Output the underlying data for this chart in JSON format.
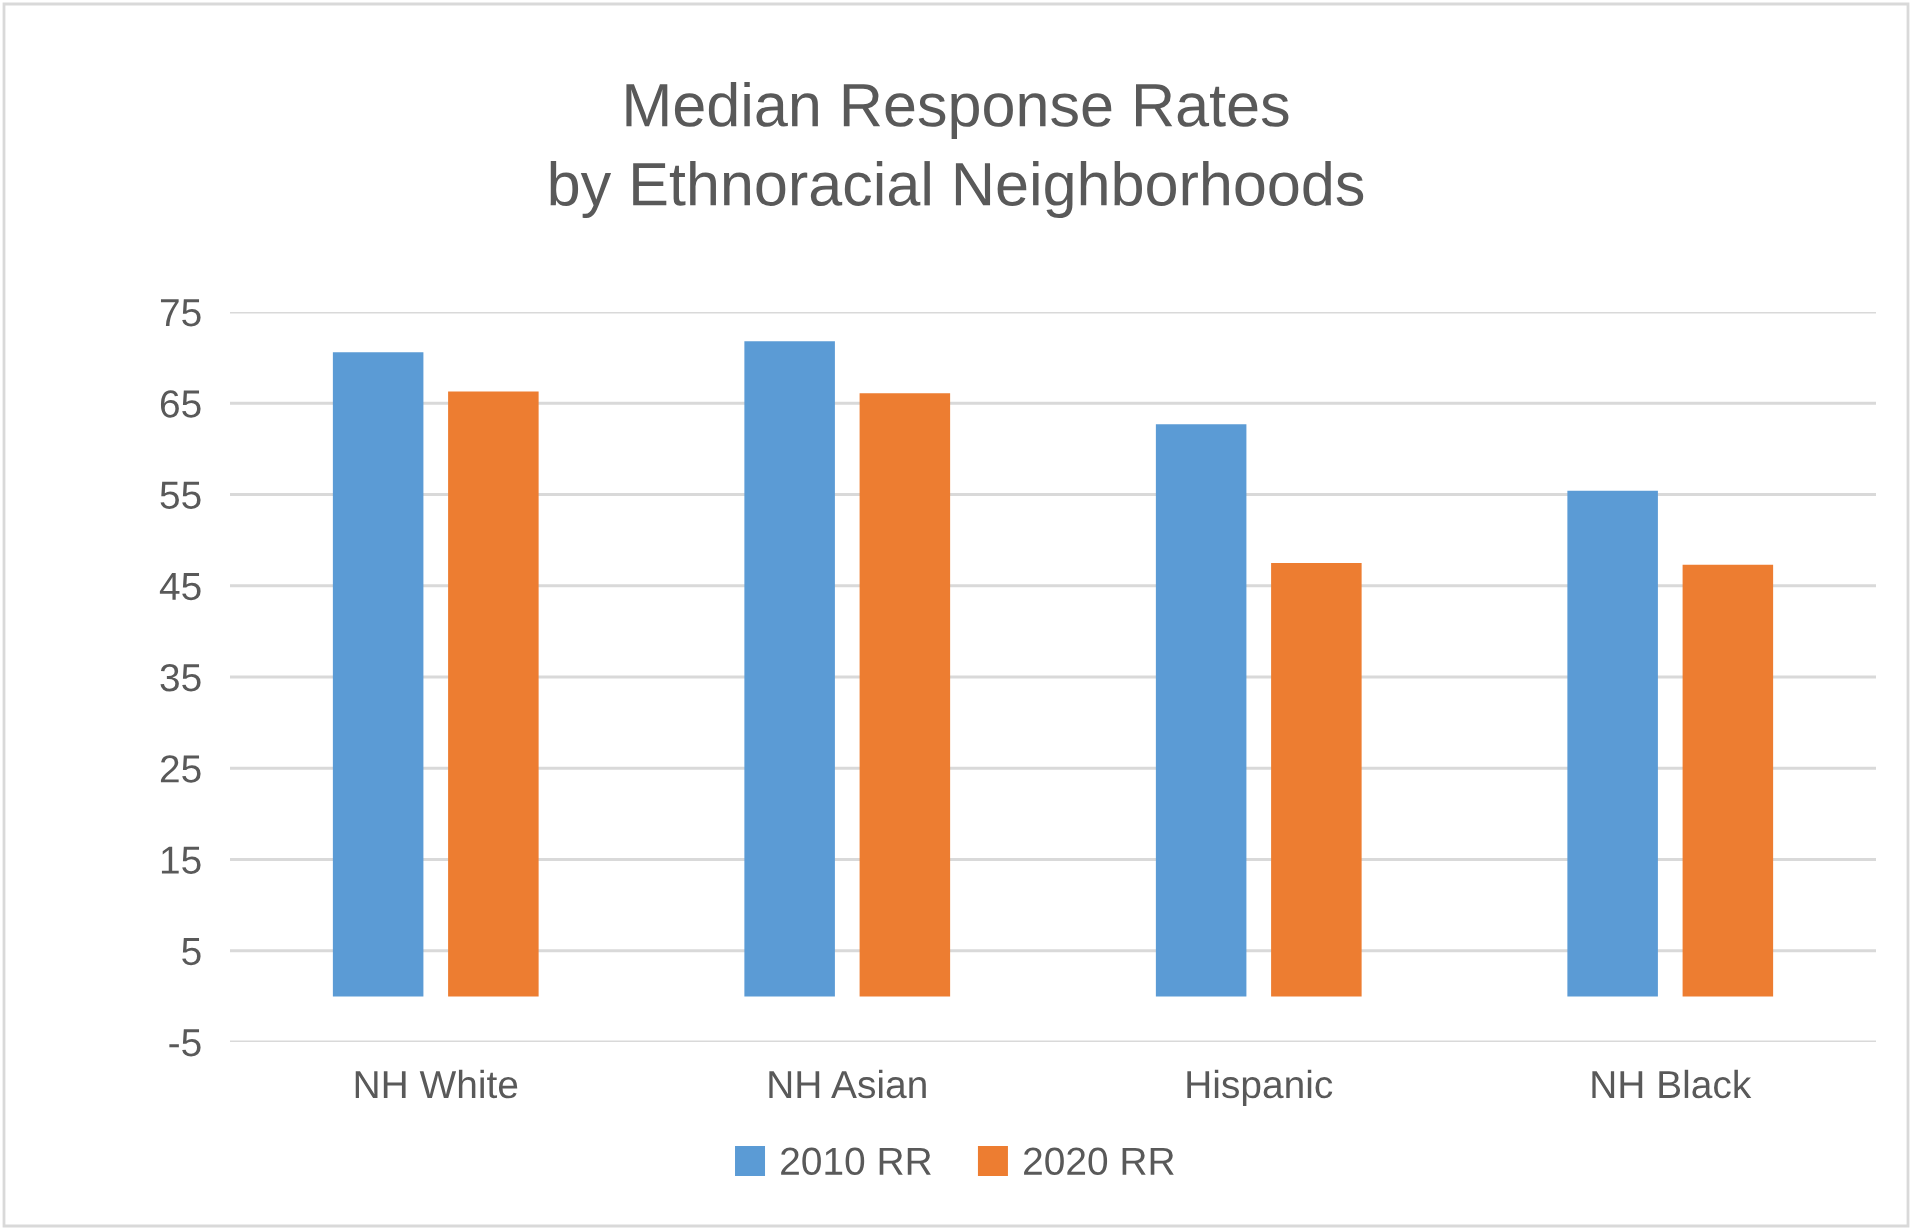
{
  "chart_data": {
    "type": "bar",
    "title": "Median Response Rates\nby Ethnoracial Neighborhoods",
    "categories": [
      "NH White",
      "NH Asian",
      "Hispanic",
      "NH Black"
    ],
    "series": [
      {
        "name": "2010 RR",
        "color": "#5b9bd5",
        "values": [
          70.6,
          71.8,
          62.7,
          55.4
        ]
      },
      {
        "name": "2020 RR",
        "color": "#ed7d31",
        "values": [
          66.3,
          66.1,
          47.5,
          47.3
        ]
      }
    ],
    "ylim": [
      -5,
      75
    ],
    "yticks": [
      -5,
      5,
      15,
      25,
      35,
      45,
      55,
      65,
      75
    ],
    "grid": "y",
    "legend": "bottom"
  }
}
